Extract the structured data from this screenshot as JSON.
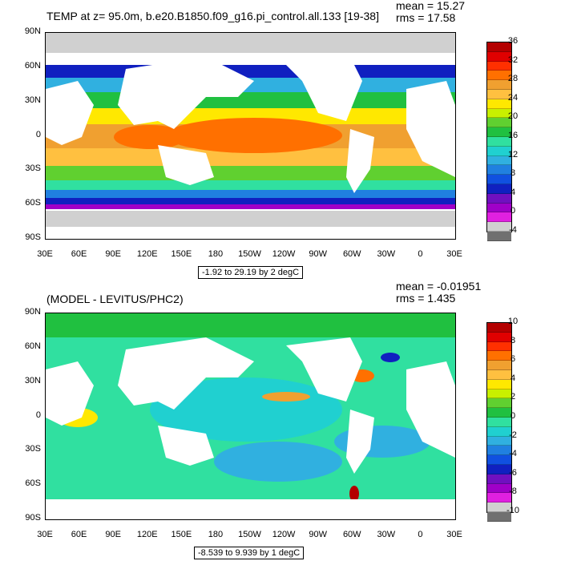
{
  "top": {
    "title": "TEMP at z=  95.0m, b.e20.B1850.f09_g16.pi_control.all.133 [19-38]",
    "mean": "mean = 15.27",
    "rms": "rms = 17.58",
    "range_label": "-1.92 to 29.19 by 2 degC",
    "colorbar_labels": [
      "36",
      "32",
      "28",
      "24",
      "20",
      "16",
      "12",
      "8",
      "4",
      "0",
      "-4"
    ],
    "colors": [
      "#b40000",
      "#e00000",
      "#ff3000",
      "#ff7000",
      "#f0a030",
      "#ffc040",
      "#ffe800",
      "#c8f000",
      "#60d030",
      "#20c040",
      "#30e0a0",
      "#20d0d0",
      "#30b0e0",
      "#2080e0",
      "#1050e0",
      "#1020c0",
      "#7010c0",
      "#a000c8",
      "#e020e0",
      "#d0d0d0",
      "#707070"
    ]
  },
  "bottom": {
    "title": "(MODEL - LEVITUS/PHC2)",
    "mean": "mean = -0.01951",
    "rms": "rms = 1.435",
    "range_label": "-8.539 to 9.939 by 1 degC",
    "colorbar_labels": [
      "10",
      "8",
      "6",
      "4",
      "2",
      "0",
      "-2",
      "-4",
      "-6",
      "-8",
      "-10"
    ],
    "colors": [
      "#b40000",
      "#e00000",
      "#ff3000",
      "#ff7000",
      "#f0a030",
      "#ffc040",
      "#ffe800",
      "#c8f000",
      "#60d030",
      "#20c040",
      "#30e0a0",
      "#20d0d0",
      "#30b0e0",
      "#2080e0",
      "#1050e0",
      "#1020c0",
      "#7010c0",
      "#a000c8",
      "#e020e0",
      "#d0d0d0",
      "#707070"
    ]
  },
  "axes": {
    "lat_labels": [
      "90N",
      "60N",
      "30N",
      "0",
      "30S",
      "60S",
      "90S"
    ],
    "lon_labels": [
      "30E",
      "60E",
      "90E",
      "120E",
      "150E",
      "180",
      "150W",
      "120W",
      "90W",
      "60W",
      "30W",
      "0",
      "30E"
    ]
  }
}
